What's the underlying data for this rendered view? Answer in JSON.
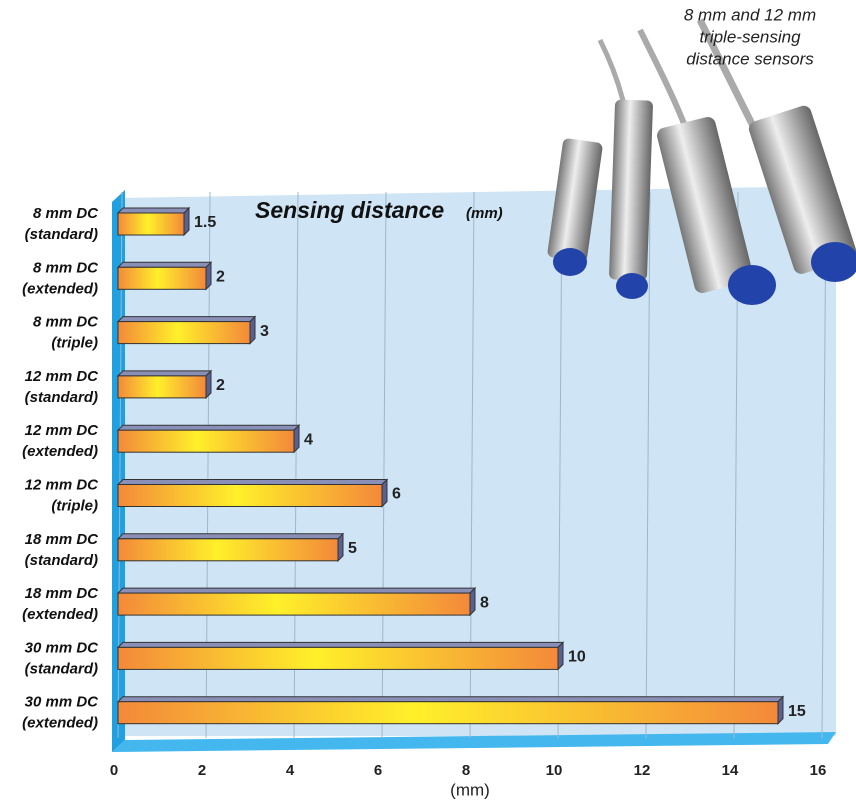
{
  "chart_data": {
    "type": "bar",
    "orientation": "horizontal",
    "title": "Sensing distance",
    "title_unit": "(mm)",
    "caption_lines": [
      "8 mm and 12 mm",
      "triple-sensing",
      "distance sensors"
    ],
    "x_label": "(mm)",
    "categories": [
      [
        "8 mm DC",
        "(standard)"
      ],
      [
        "8 mm DC",
        "(extended)"
      ],
      [
        "8 mm DC",
        "(triple)"
      ],
      [
        "12 mm DC",
        "(standard)"
      ],
      [
        "12 mm DC",
        "(extended)"
      ],
      [
        "12 mm DC",
        "(triple)"
      ],
      [
        "18 mm DC",
        "(standard)"
      ],
      [
        "18 mm DC",
        "(extended)"
      ],
      [
        "30 mm DC",
        "(standard)"
      ],
      [
        "30 mm DC",
        "(extended)"
      ]
    ],
    "values": [
      1.5,
      2,
      3,
      2,
      4,
      6,
      5,
      8,
      10,
      15
    ],
    "color": "#f3893a",
    "highlight_color": "#fff02a",
    "xlim": [
      0,
      16
    ],
    "xticks": [
      0,
      2,
      4,
      6,
      8,
      10,
      12,
      14,
      16
    ],
    "grid": true
  }
}
